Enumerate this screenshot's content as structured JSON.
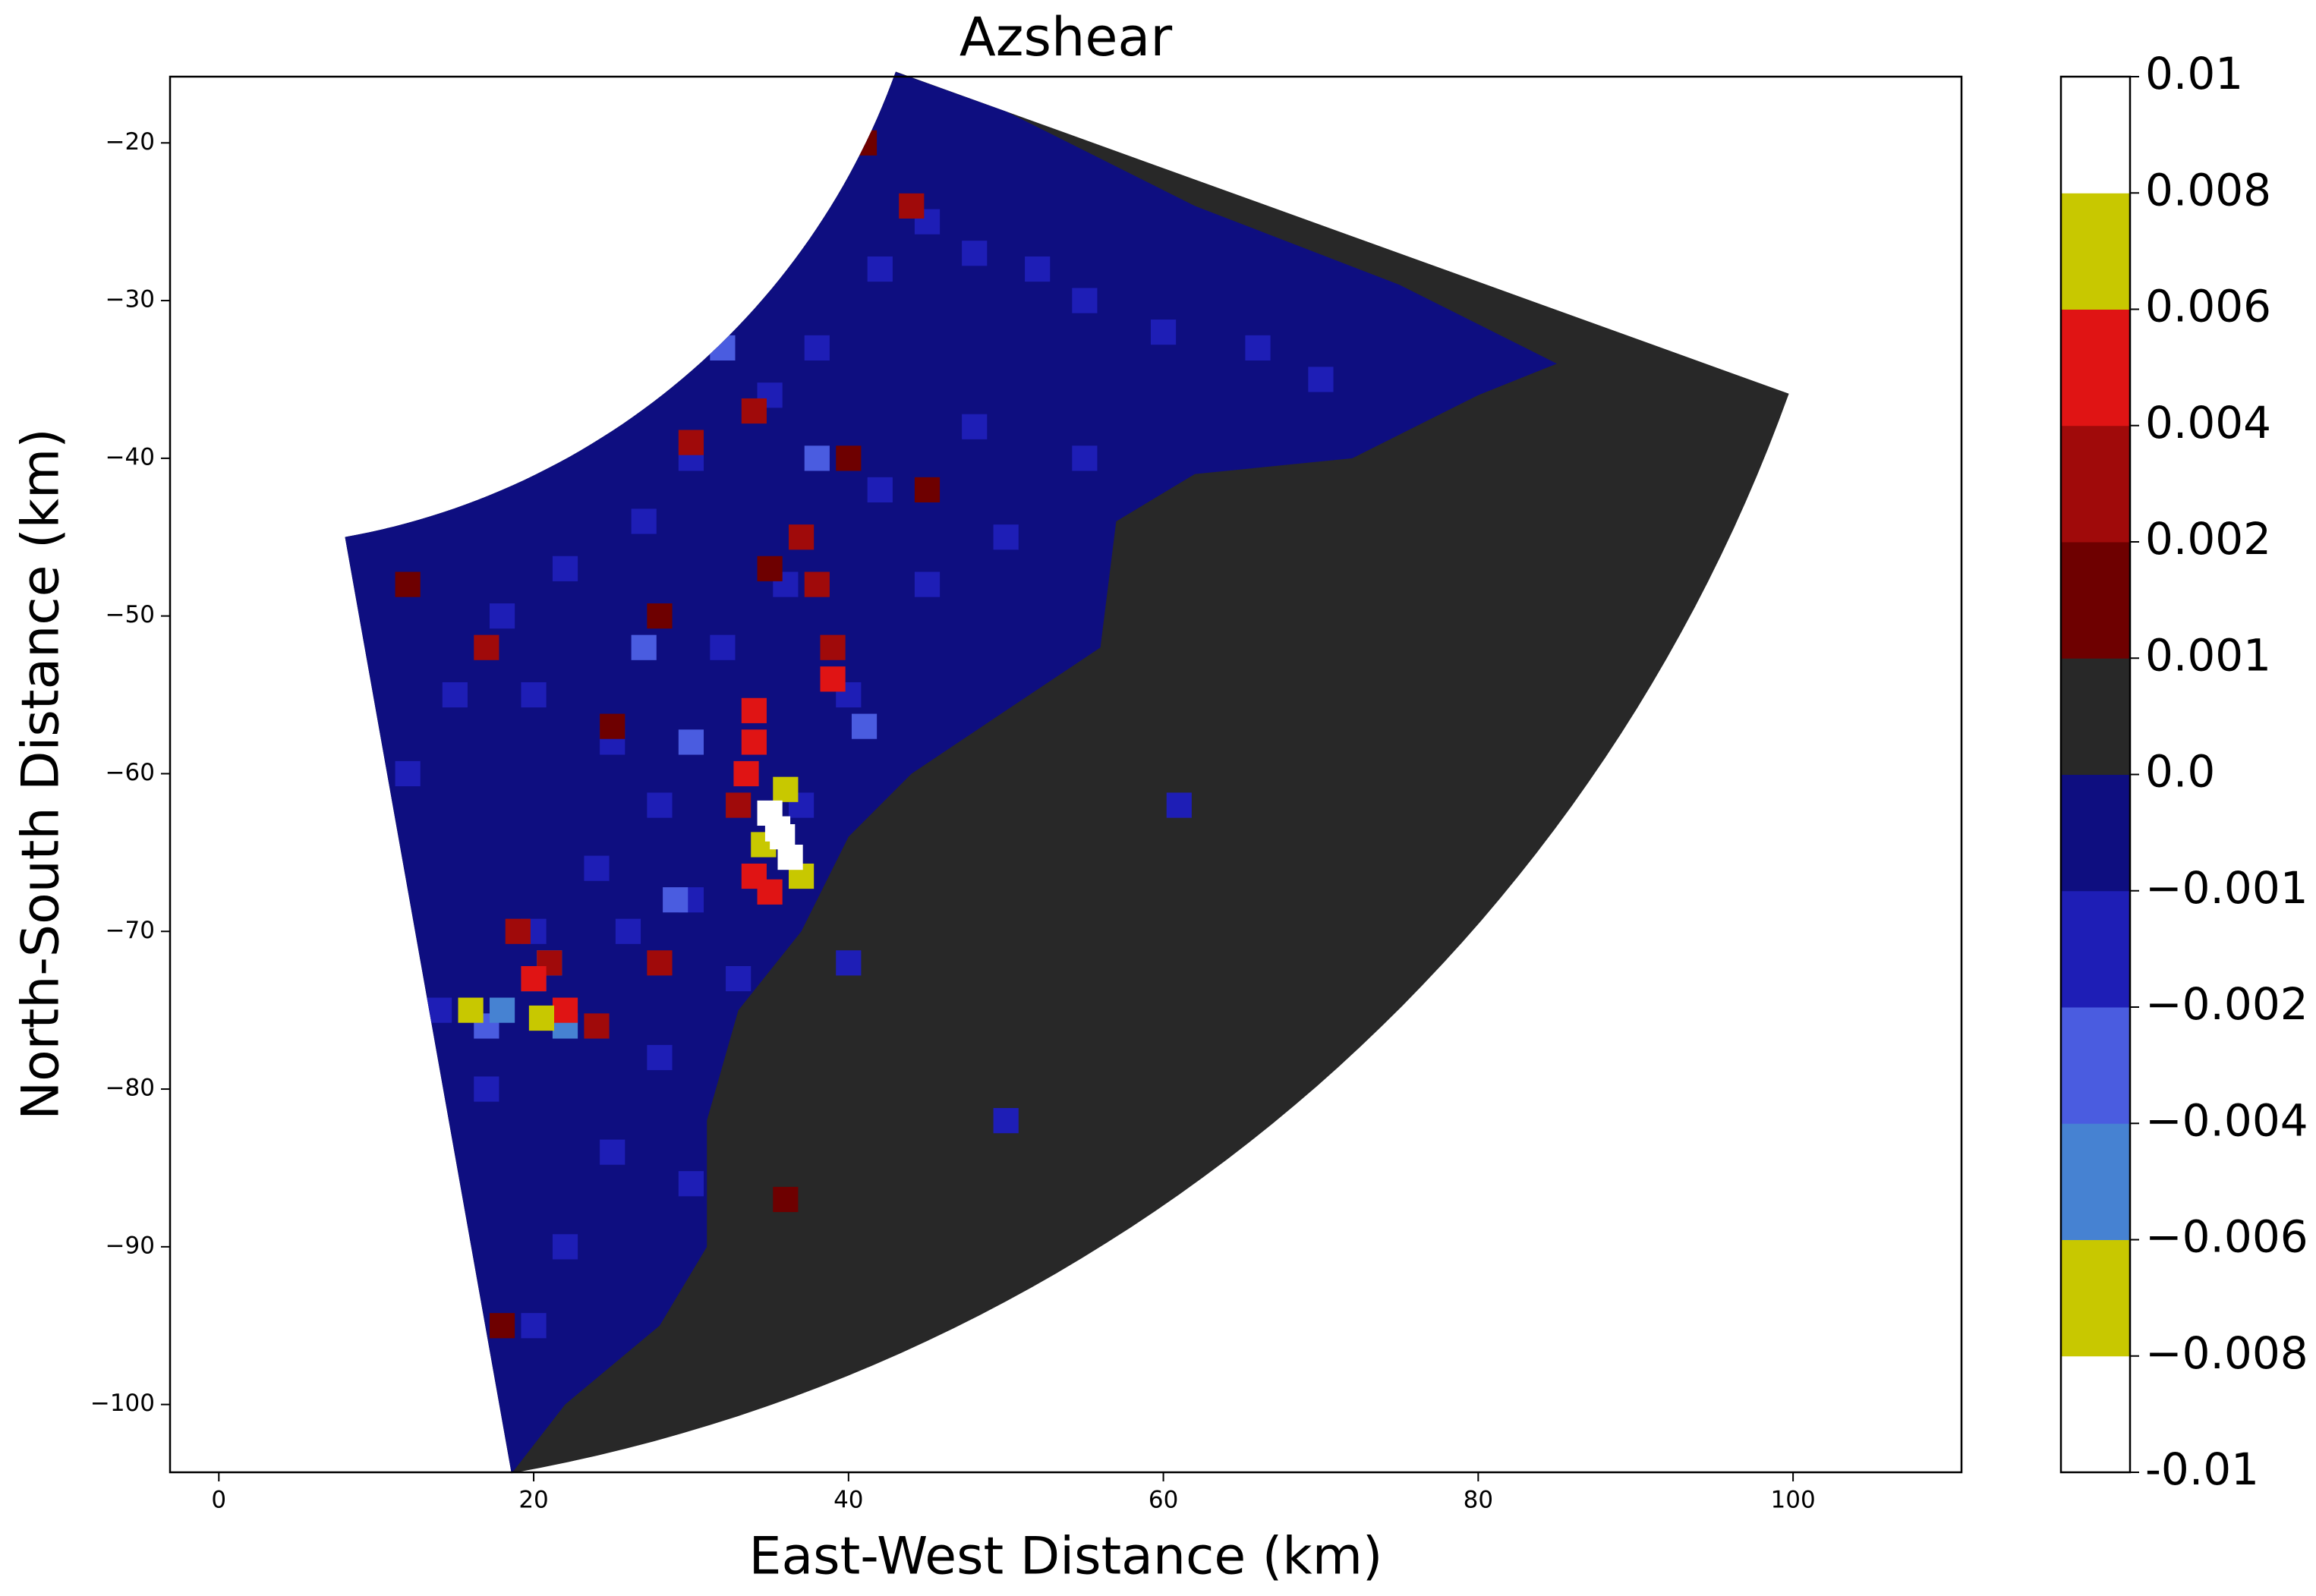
{
  "chart_data": {
    "type": "radar-ppi",
    "title": "Azshear",
    "x_label": "East-West Distance (km)",
    "y_label": "North-South Distance (km)",
    "xlim": [
      -3.1,
      110.7
    ],
    "ylim": [
      -104.3,
      -15.8
    ],
    "xticks": [
      0,
      20,
      40,
      60,
      80,
      100
    ],
    "yticks": [
      {
        "value": -20,
        "label": "−20"
      },
      {
        "value": -30,
        "label": "−30"
      },
      {
        "value": -40,
        "label": "−40"
      },
      {
        "value": -50,
        "label": "−50"
      },
      {
        "value": -60,
        "label": "−60"
      },
      {
        "value": -70,
        "label": "−70"
      },
      {
        "value": -80,
        "label": "−80"
      },
      {
        "value": -90,
        "label": "−90"
      },
      {
        "value": -100,
        "label": "−100"
      }
    ],
    "sector": {
      "radar_origin": [
        0,
        0
      ],
      "azimuth": [
        109.8,
        169.9
      ],
      "range": [
        45.7,
        106
      ],
      "value": 0.0005
    },
    "regions": [
      {
        "value": -0.0005,
        "x": [
          8,
          43,
          50,
          62,
          75,
          85,
          80,
          72,
          62,
          57,
          56,
          50,
          44,
          40,
          37,
          33,
          31,
          31,
          28,
          22,
          18.5,
          14
        ],
        "y": [
          -45,
          -15.5,
          -18,
          -24,
          -29,
          -34,
          -36,
          -40,
          -41,
          -44,
          -52,
          -56,
          -60,
          -64,
          -70,
          -75,
          -82,
          -90,
          -95,
          -100,
          -104.5,
          -80
        ]
      }
    ],
    "cells": {
      "x": [
        45,
        48,
        52,
        55,
        42,
        38,
        35,
        30,
        27,
        22,
        18,
        15,
        20,
        25,
        28,
        24,
        20,
        26,
        30,
        33,
        28,
        25,
        30,
        22,
        20,
        40,
        45,
        50,
        55,
        60,
        66,
        70,
        48,
        42,
        36,
        32,
        17,
        12,
        14,
        37,
        61,
        50,
        40,
        32,
        38,
        27,
        29,
        20,
        41,
        17,
        30,
        18,
        21,
        22,
        25,
        28,
        40,
        45,
        35,
        18,
        36,
        12,
        41,
        37,
        38,
        39,
        30,
        17,
        21,
        28,
        24,
        19,
        33,
        44,
        34,
        34,
        34,
        33.5,
        34,
        35,
        20,
        22,
        39,
        36,
        34.6,
        37,
        16,
        20.5,
        35,
        35.8,
        36.3,
        35.5
      ],
      "y": [
        -25,
        -27,
        -28,
        -30,
        -28,
        -33,
        -36,
        -40,
        -44,
        -47,
        -50,
        -55,
        -55,
        -58,
        -62,
        -66,
        -70,
        -70,
        -68,
        -73,
        -78,
        -84,
        -86,
        -90,
        -95,
        -55,
        -48,
        -45,
        -40,
        -32,
        -33,
        -35,
        -38,
        -42,
        -48,
        -52,
        -80,
        -60,
        -75,
        -62,
        -62,
        -82,
        -72,
        -33,
        -40,
        -52,
        -68,
        -73,
        -57,
        -76,
        -58,
        -75,
        -72,
        -76,
        -57,
        -50,
        -40,
        -42,
        -47,
        -95,
        -87,
        -48,
        -20,
        -45,
        -48,
        -52,
        -39,
        -52,
        -72,
        -72,
        -76,
        -70,
        -62,
        -24,
        -37,
        -56,
        -58,
        -60,
        -66.5,
        -67.5,
        -73,
        -75,
        -54,
        -61,
        -64.5,
        -66.5,
        -75,
        -75.5,
        -62.5,
        -64,
        -65.3,
        -63.5
      ],
      "values": [
        -0.0015,
        -0.0015,
        -0.0015,
        -0.0015,
        -0.0015,
        -0.0015,
        -0.0015,
        -0.0015,
        -0.0015,
        -0.0015,
        -0.0015,
        -0.0015,
        -0.0015,
        -0.0015,
        -0.0015,
        -0.0015,
        -0.0015,
        -0.0015,
        -0.0015,
        -0.0015,
        -0.0015,
        -0.0015,
        -0.0015,
        -0.0015,
        -0.0015,
        -0.0015,
        -0.0015,
        -0.0015,
        -0.0015,
        -0.0015,
        -0.0015,
        -0.0015,
        -0.0015,
        -0.0015,
        -0.0015,
        -0.0015,
        -0.0015,
        -0.0015,
        -0.0015,
        -0.0015,
        -0.0015,
        -0.0015,
        -0.0015,
        -0.003,
        -0.003,
        -0.003,
        -0.003,
        -0.003,
        -0.003,
        -0.003,
        -0.003,
        -0.005,
        -0.005,
        -0.005,
        0.0015,
        0.0015,
        0.0015,
        0.0015,
        0.0015,
        0.0015,
        0.0015,
        0.0015,
        0.0015,
        0.003,
        0.003,
        0.003,
        0.003,
        0.003,
        0.003,
        0.003,
        0.003,
        0.003,
        0.003,
        0.003,
        0.003,
        0.005,
        0.005,
        0.005,
        0.005,
        0.005,
        0.005,
        0.005,
        0.005,
        0.007,
        0.007,
        0.007,
        0.007,
        0.007,
        0.009,
        0.009,
        0.009,
        0.009
      ]
    },
    "colorbar": {
      "bounds": [
        -0.01,
        {
          "value": -0.008,
          "label": "−0.008"
        },
        {
          "value": -0.006,
          "label": "−0.006"
        },
        {
          "value": -0.004,
          "label": "−0.004"
        },
        {
          "value": -0.002,
          "label": "−0.002"
        },
        {
          "value": -0.001,
          "label": "−0.001"
        },
        {
          "value": 0,
          "label": "0.0"
        },
        0.001,
        0.002,
        0.004,
        0.006,
        0.008,
        0.01
      ],
      "colors": [
        "#ffffff",
        "#c8c800",
        "#4682d2",
        "#4a5ce0",
        "#1e1eb6",
        "#0e0e80",
        "#282828",
        "#6e0000",
        "#a00a0a",
        "#e01414",
        "#c8c800",
        "#ffffff"
      ]
    }
  }
}
